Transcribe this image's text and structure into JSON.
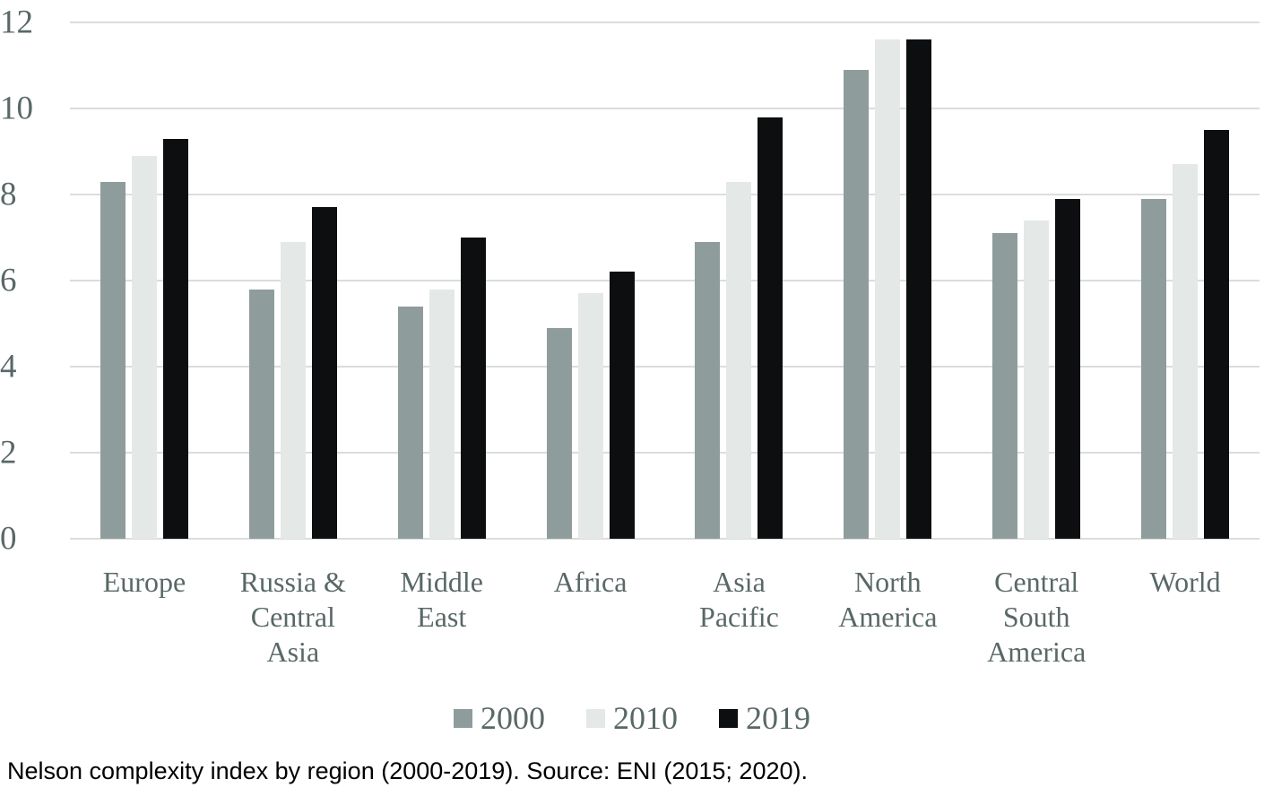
{
  "caption": "Nelson complexity index by region (2000-2019). Source: ENI (2015; 2020).",
  "colors": {
    "series_2000": "#8e9d9c",
    "series_2010": "#e4e8e7",
    "series_2019": "#0d0e0f",
    "axis_text": "#596867",
    "gridline": "#dadddc",
    "caption_text": "#000000"
  },
  "chart_data": {
    "type": "bar",
    "title": "",
    "xlabel": "",
    "ylabel": "",
    "categories": [
      "Europe",
      "Russia &\nCentral\nAsia",
      "Middle\nEast",
      "Africa",
      "Asia\nPacific",
      "North\nAmerica",
      "Central\nSouth\nAmerica",
      "World"
    ],
    "series": [
      {
        "name": "2000",
        "color": "#8e9d9c",
        "values": [
          8.3,
          5.8,
          5.4,
          4.9,
          6.9,
          10.9,
          7.1,
          7.9
        ]
      },
      {
        "name": "2010",
        "color": "#e4e8e7",
        "values": [
          8.9,
          6.9,
          5.8,
          5.7,
          8.3,
          11.6,
          7.4,
          8.7
        ]
      },
      {
        "name": "2019",
        "color": "#0d0e0f",
        "values": [
          9.3,
          7.7,
          7.0,
          6.2,
          9.8,
          11.6,
          7.9,
          9.5
        ]
      }
    ],
    "ylim": [
      0,
      12
    ],
    "yticks": [
      0,
      2,
      4,
      6,
      8,
      10,
      12
    ],
    "grid": true,
    "legend_position": "bottom"
  }
}
